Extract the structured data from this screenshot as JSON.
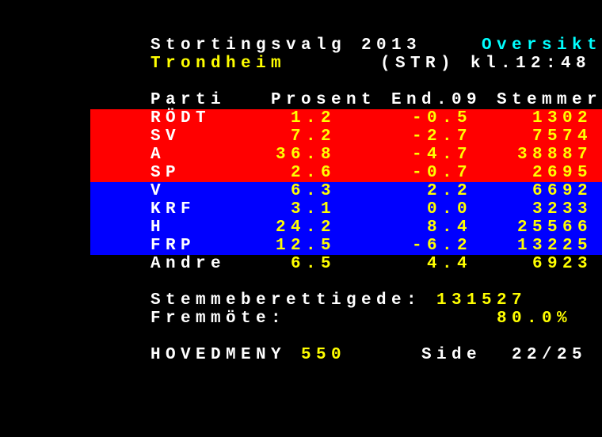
{
  "header": {
    "title": "Stortingsvalg 2013",
    "section": "Oversikt",
    "location": "Trondheim",
    "code_time": "(STR) kl.12:48"
  },
  "table": {
    "columns": [
      "Parti",
      "Prosent",
      "End.09",
      "Stemmer"
    ],
    "rows": [
      {
        "party": "RÖDT",
        "pct": "1.2",
        "change": "-0.5",
        "votes": "1302",
        "band": "red"
      },
      {
        "party": "SV",
        "pct": "7.2",
        "change": "-2.7",
        "votes": "7574",
        "band": "red"
      },
      {
        "party": "A",
        "pct": "36.8",
        "change": "-4.7",
        "votes": "38887",
        "band": "red"
      },
      {
        "party": "SP",
        "pct": "2.6",
        "change": "-0.7",
        "votes": "2695",
        "band": "red"
      },
      {
        "party": "V",
        "pct": "6.3",
        "change": "2.2",
        "votes": "6692",
        "band": "blue"
      },
      {
        "party": "KRF",
        "pct": "3.1",
        "change": "0.0",
        "votes": "3233",
        "band": "blue"
      },
      {
        "party": "H",
        "pct": "24.2",
        "change": "8.4",
        "votes": "25566",
        "band": "blue"
      },
      {
        "party": "FRP",
        "pct": "12.5",
        "change": "-6.2",
        "votes": "13225",
        "band": "blue"
      },
      {
        "party": "Andre",
        "pct": "6.5",
        "change": "4.4",
        "votes": "6923",
        "band": "none"
      }
    ]
  },
  "summary": {
    "eligible_label": "Stemmeberettigede:",
    "eligible_value": "131527",
    "turnout_label": "Fremmöte:",
    "turnout_value": "80.0%"
  },
  "footer": {
    "menu_label": "HOVEDMENY",
    "menu_page": "550",
    "side_label": "Side",
    "side_value": "22/25"
  },
  "colors": {
    "red": "#ff0000",
    "blue": "#0000ff",
    "yellow": "#ffff00",
    "cyan": "#00ffff",
    "white": "#ffffff"
  }
}
